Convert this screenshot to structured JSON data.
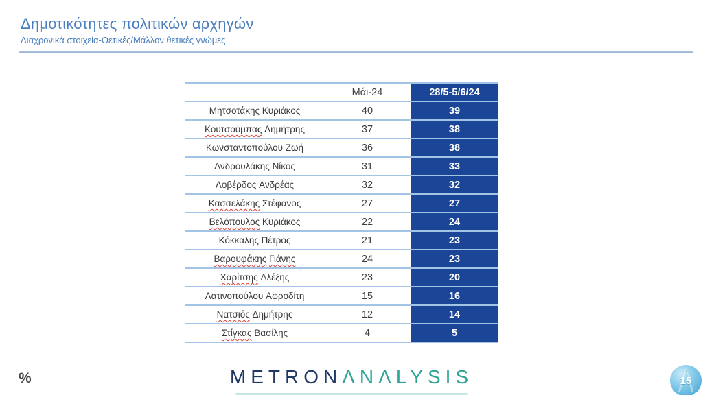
{
  "slide": {
    "title": "Δημοτικότητες πολιτικών αρχηγών",
    "subtitle": "Διαχρονικά στοιχεία-Θετικές/Μάλλον θετικές γνώμες",
    "percent_label": "%",
    "page_number": "15",
    "logo": {
      "part1": "METRON",
      "part2": "ΛNΛLYSIS"
    }
  },
  "table": {
    "col_headers": [
      "Μάι-24",
      "28/5-5/6/24"
    ],
    "rows": [
      {
        "name_parts": [
          {
            "text": "Μητσοτάκης",
            "misspelled": false
          },
          {
            "text": "Κυριάκος",
            "misspelled": false
          }
        ],
        "mai24": "40",
        "jun24": "39"
      },
      {
        "name_parts": [
          {
            "text": "Κουτσούμπας",
            "misspelled": true
          },
          {
            "text": "Δημήτρης",
            "misspelled": false
          }
        ],
        "mai24": "37",
        "jun24": "38"
      },
      {
        "name_parts": [
          {
            "text": "Κωνσταντοπούλου",
            "misspelled": false
          },
          {
            "text": "Ζωή",
            "misspelled": false
          }
        ],
        "mai24": "36",
        "jun24": "38"
      },
      {
        "name_parts": [
          {
            "text": "Ανδρουλάκης",
            "misspelled": false
          },
          {
            "text": "Νίκος",
            "misspelled": false
          }
        ],
        "mai24": "31",
        "jun24": "33"
      },
      {
        "name_parts": [
          {
            "text": "Λοβέρδος",
            "misspelled": false
          },
          {
            "text": "Ανδρέας",
            "misspelled": false
          }
        ],
        "mai24": "32",
        "jun24": "32"
      },
      {
        "name_parts": [
          {
            "text": "Κασσελάκης",
            "misspelled": true
          },
          {
            "text": "Στέφανος",
            "misspelled": false
          }
        ],
        "mai24": "27",
        "jun24": "27"
      },
      {
        "name_parts": [
          {
            "text": "Βελόπουλος",
            "misspelled": true
          },
          {
            "text": "Κυριάκος",
            "misspelled": false
          }
        ],
        "mai24": "22",
        "jun24": "24"
      },
      {
        "name_parts": [
          {
            "text": "Κόκκαλης",
            "misspelled": false
          },
          {
            "text": "Πέτρος",
            "misspelled": false
          }
        ],
        "mai24": "21",
        "jun24": "23"
      },
      {
        "name_parts": [
          {
            "text": "Βαρουφάκης",
            "misspelled": true
          },
          {
            "text": "Γιάνης",
            "misspelled": true
          }
        ],
        "mai24": "24",
        "jun24": "23"
      },
      {
        "name_parts": [
          {
            "text": "Χαρίτσης",
            "misspelled": true
          },
          {
            "text": "Αλέξης",
            "misspelled": false
          }
        ],
        "mai24": "23",
        "jun24": "20"
      },
      {
        "name_parts": [
          {
            "text": "Λατινοπούλου",
            "misspelled": false
          },
          {
            "text": "Αφροδίτη",
            "misspelled": false
          }
        ],
        "mai24": "15",
        "jun24": "16"
      },
      {
        "name_parts": [
          {
            "text": "Νατσιός",
            "misspelled": true
          },
          {
            "text": "Δημήτρης",
            "misspelled": false
          }
        ],
        "mai24": "12",
        "jun24": "14"
      },
      {
        "name_parts": [
          {
            "text": "Στίγκας",
            "misspelled": true
          },
          {
            "text": "Βασίλης",
            "misspelled": false
          }
        ],
        "mai24": "4",
        "jun24": "5"
      }
    ]
  },
  "chart_data": {
    "type": "table",
    "title": "Δημοτικότητες πολιτικών αρχηγών",
    "subtitle": "Διαχρονικά στοιχεία-Θετικές/Μάλλον θετικές γνώμες",
    "unit": "%",
    "categories": [
      "Μητσοτάκης Κυριάκος",
      "Κουτσούμπας Δημήτρης",
      "Κωνσταντοπούλου Ζωή",
      "Ανδρουλάκης Νίκος",
      "Λοβέρδος Ανδρέας",
      "Κασσελάκης Στέφανος",
      "Βελόπουλος Κυριάκος",
      "Κόκκαλης Πέτρος",
      "Βαρουφάκης Γιάνης",
      "Χαρίτσης Αλέξης",
      "Λατινοπούλου Αφροδίτη",
      "Νατσιός Δημήτρης",
      "Στίγκας Βασίλης"
    ],
    "series": [
      {
        "name": "Μάι-24",
        "values": [
          40,
          37,
          36,
          31,
          32,
          27,
          22,
          21,
          24,
          23,
          15,
          12,
          4
        ]
      },
      {
        "name": "28/5-5/6/24",
        "values": [
          39,
          38,
          38,
          33,
          32,
          27,
          24,
          23,
          23,
          20,
          16,
          14,
          5
        ]
      }
    ]
  },
  "colors": {
    "accent_blue": "#4A7EBE",
    "table_header_blue": "#1B4596",
    "row_divider_blue": "#A3C4E5",
    "logo_navy": "#203864",
    "logo_teal": "#2DA493",
    "squiggle_red": "#E03C31",
    "page_circle_blue": "#5AB1DC"
  }
}
